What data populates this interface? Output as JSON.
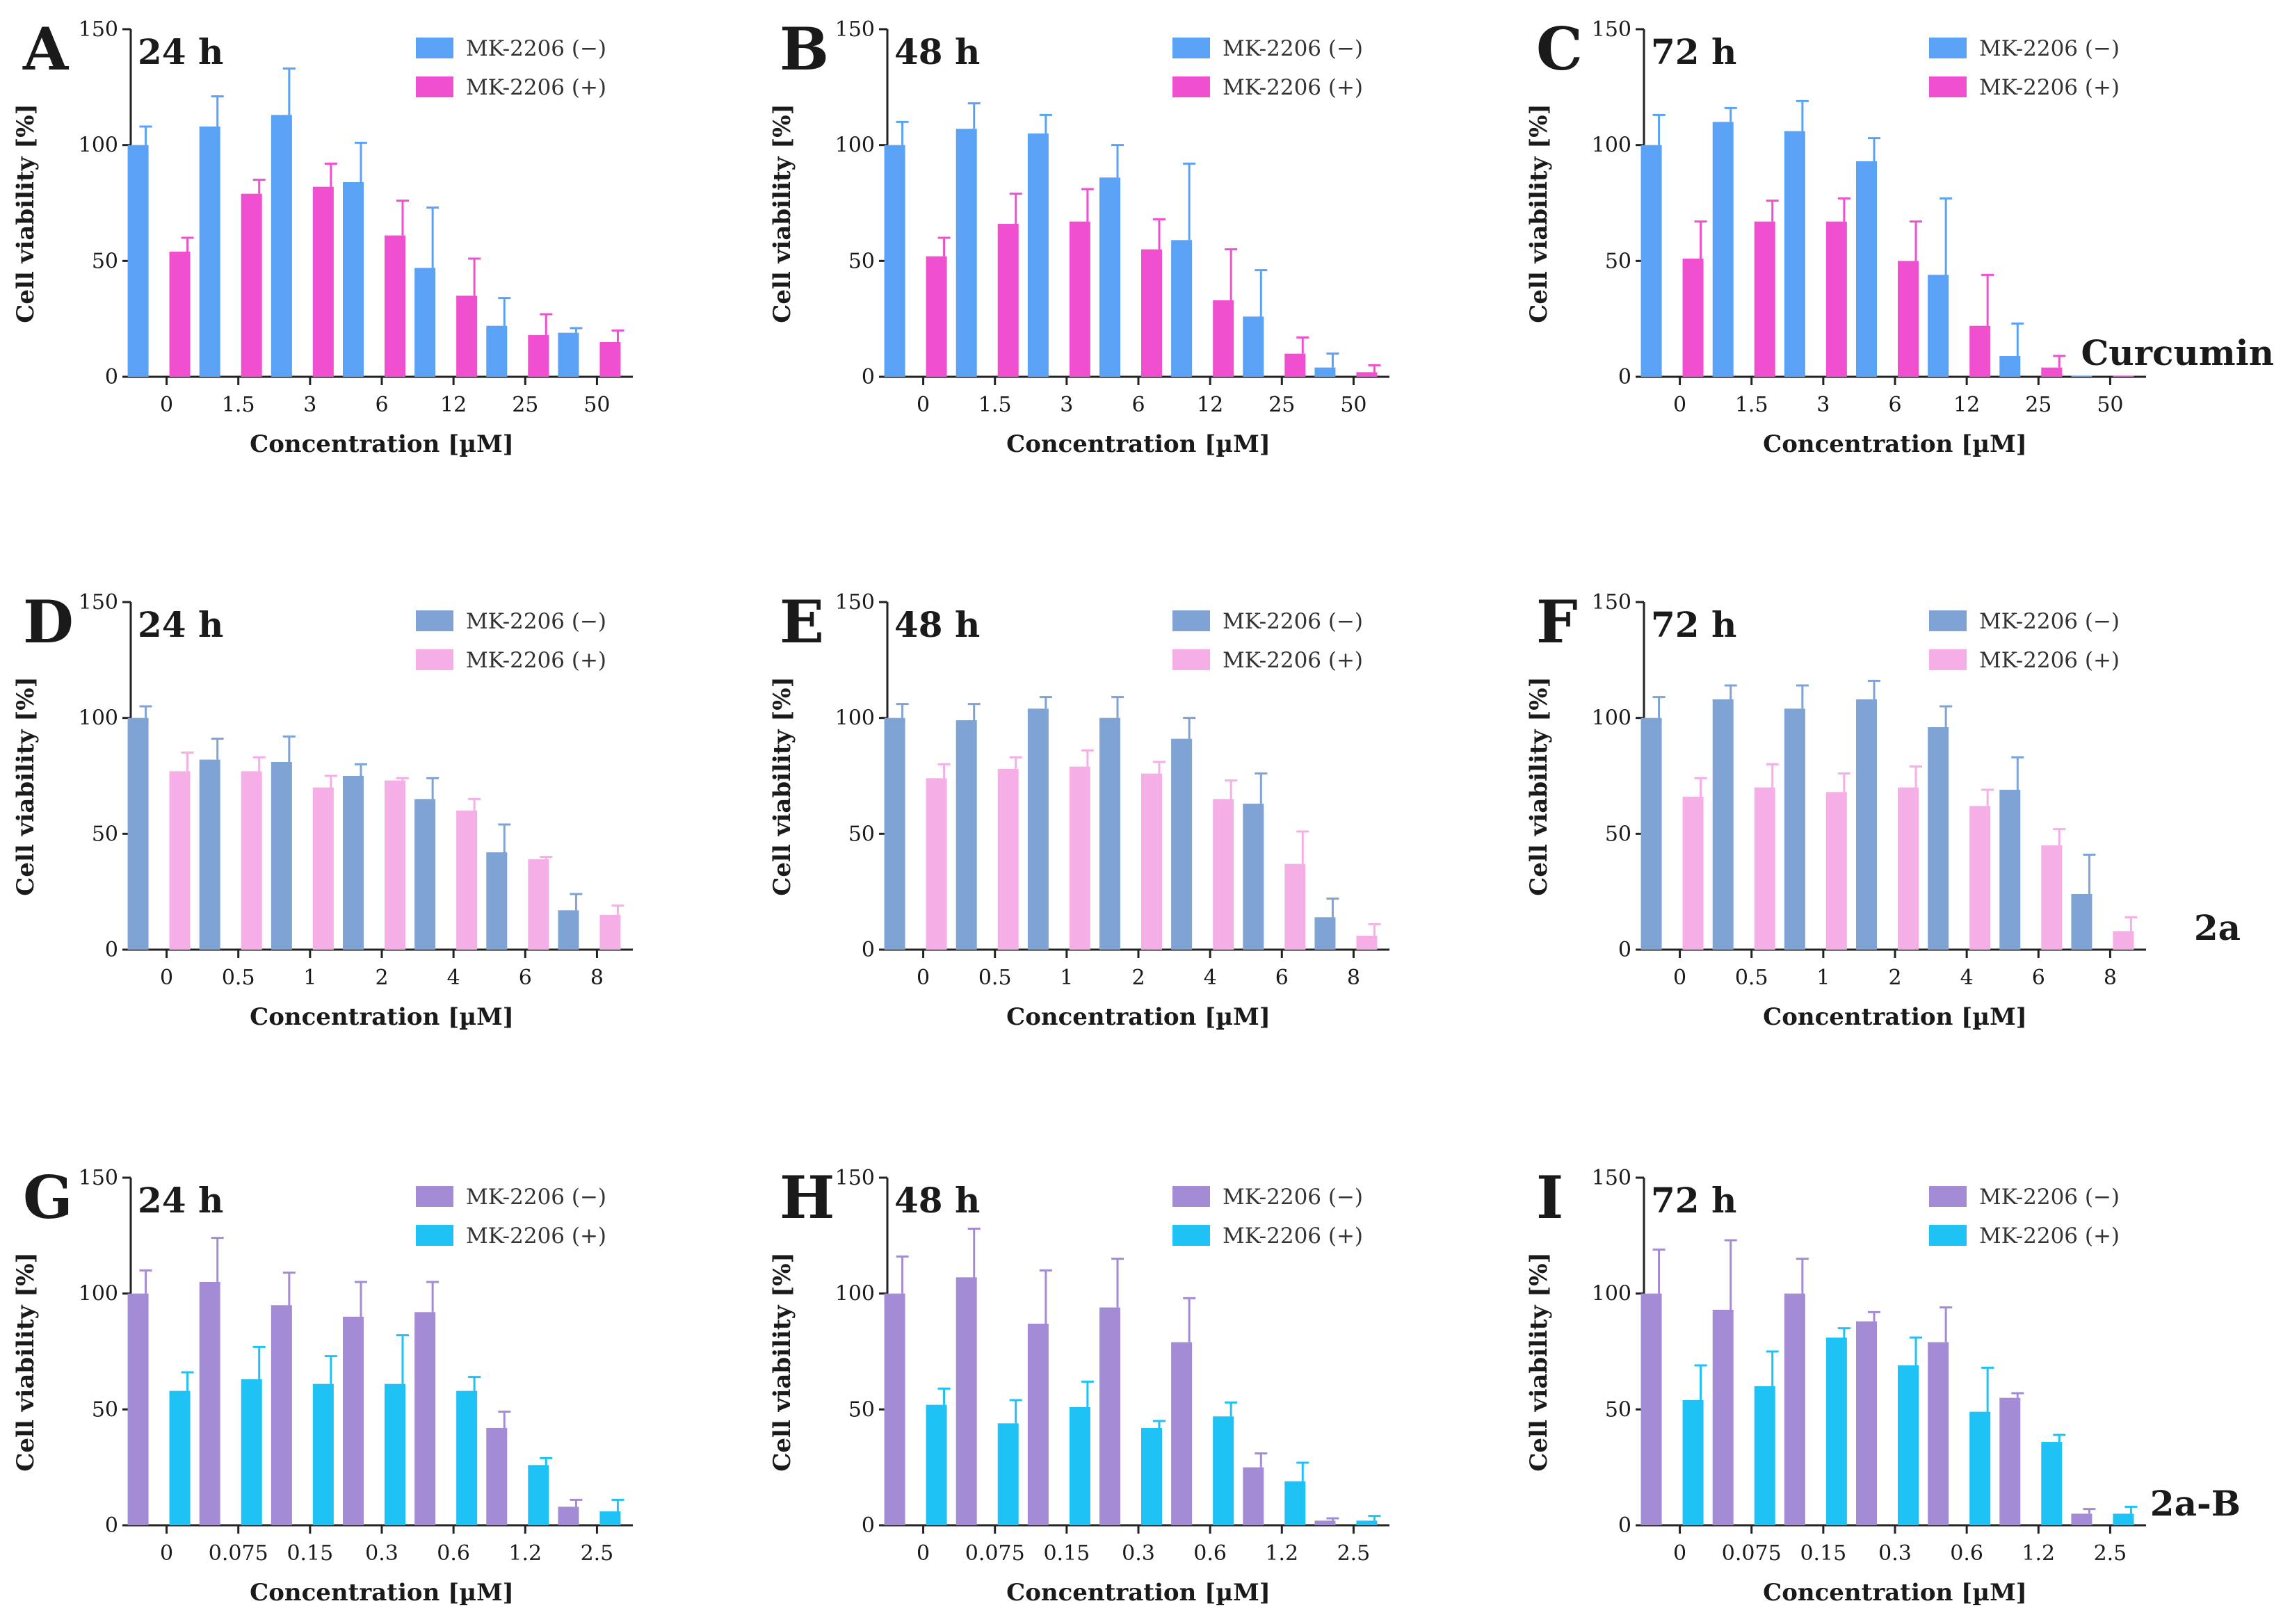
{
  "figure": {
    "row_labels": [
      "Curcumin",
      "2a",
      "2a-B"
    ]
  },
  "chart_data": [
    {
      "type": "bar",
      "panel": "A",
      "subtitle": "24 h",
      "compound": "Curcumin",
      "categories": [
        "0",
        "1.5",
        "3",
        "6",
        "12",
        "25",
        "50"
      ],
      "xlabel": "Concentration [µM]",
      "ylabel": "Cell viability [%]",
      "ylim": [
        0,
        150
      ],
      "yticks": [
        0,
        50,
        100,
        150
      ],
      "series": [
        {
          "name": "MK-2206 (−)",
          "color": "#5aa2f5",
          "values": [
            100,
            108,
            113,
            84,
            47,
            22,
            19
          ],
          "errors": [
            8,
            13,
            20,
            17,
            26,
            12,
            2
          ]
        },
        {
          "name": "MK-2206 (+)",
          "color": "#f04fd0",
          "values": [
            54,
            79,
            82,
            61,
            35,
            18,
            15
          ],
          "errors": [
            6,
            6,
            10,
            15,
            16,
            9,
            5
          ]
        }
      ]
    },
    {
      "type": "bar",
      "panel": "B",
      "subtitle": "48 h",
      "compound": "Curcumin",
      "categories": [
        "0",
        "1.5",
        "3",
        "6",
        "12",
        "25",
        "50"
      ],
      "xlabel": "Concentration [µM]",
      "ylabel": "Cell viability [%]",
      "ylim": [
        0,
        150
      ],
      "yticks": [
        0,
        50,
        100,
        150
      ],
      "series": [
        {
          "name": "MK-2206 (−)",
          "color": "#5aa2f5",
          "values": [
            100,
            107,
            105,
            86,
            59,
            26,
            4
          ],
          "errors": [
            10,
            11,
            8,
            14,
            33,
            20,
            6
          ]
        },
        {
          "name": "MK-2206 (+)",
          "color": "#f04fd0",
          "values": [
            52,
            66,
            67,
            55,
            33,
            10,
            2
          ],
          "errors": [
            8,
            13,
            14,
            13,
            22,
            7,
            3
          ]
        }
      ]
    },
    {
      "type": "bar",
      "panel": "C",
      "subtitle": "72 h",
      "compound": "Curcumin",
      "categories": [
        "0",
        "1.5",
        "3",
        "6",
        "12",
        "25",
        "50"
      ],
      "xlabel": "Concentration [µM]",
      "ylabel": "Cell viability [%]",
      "ylim": [
        0,
        150
      ],
      "yticks": [
        0,
        50,
        100,
        150
      ],
      "series": [
        {
          "name": "MK-2206 (−)",
          "color": "#5aa2f5",
          "values": [
            100,
            110,
            106,
            93,
            44,
            9,
            0.5
          ],
          "errors": [
            13,
            6,
            13,
            10,
            33,
            14,
            0
          ]
        },
        {
          "name": "MK-2206 (+)",
          "color": "#f04fd0",
          "values": [
            51,
            67,
            67,
            50,
            22,
            4,
            0.5
          ],
          "errors": [
            16,
            9,
            10,
            17,
            22,
            5,
            0
          ]
        }
      ]
    },
    {
      "type": "bar",
      "panel": "D",
      "subtitle": "24 h",
      "compound": "2a",
      "categories": [
        "0",
        "0.5",
        "1",
        "2",
        "4",
        "6",
        "8"
      ],
      "xlabel": "Concentration [µM]",
      "ylabel": "Cell viability [%]",
      "ylim": [
        0,
        150
      ],
      "yticks": [
        0,
        50,
        100,
        150
      ],
      "series": [
        {
          "name": "MK-2206 (−)",
          "color": "#7ea3d4",
          "values": [
            100,
            82,
            81,
            75,
            65,
            42,
            17
          ],
          "errors": [
            5,
            9,
            11,
            5,
            9,
            12,
            7
          ]
        },
        {
          "name": "MK-2206 (+)",
          "color": "#f5aee6",
          "values": [
            77,
            77,
            70,
            73,
            60,
            39,
            15
          ],
          "errors": [
            8,
            6,
            5,
            1,
            5,
            1,
            4
          ]
        }
      ]
    },
    {
      "type": "bar",
      "panel": "E",
      "subtitle": "48 h",
      "compound": "2a",
      "categories": [
        "0",
        "0.5",
        "1",
        "2",
        "4",
        "6",
        "8"
      ],
      "xlabel": "Concentration [µM]",
      "ylabel": "Cell viability [%]",
      "ylim": [
        0,
        150
      ],
      "yticks": [
        0,
        50,
        100,
        150
      ],
      "series": [
        {
          "name": "MK-2206 (−)",
          "color": "#7ea3d4",
          "values": [
            100,
            99,
            104,
            100,
            91,
            63,
            14
          ],
          "errors": [
            6,
            7,
            5,
            9,
            9,
            13,
            8
          ]
        },
        {
          "name": "MK-2206 (+)",
          "color": "#f5aee6",
          "values": [
            74,
            78,
            79,
            76,
            65,
            37,
            6
          ],
          "errors": [
            6,
            5,
            7,
            5,
            8,
            14,
            5
          ]
        }
      ]
    },
    {
      "type": "bar",
      "panel": "F",
      "subtitle": "72 h",
      "compound": "2a",
      "categories": [
        "0",
        "0.5",
        "1",
        "2",
        "4",
        "6",
        "8"
      ],
      "xlabel": "Concentration [µM]",
      "ylabel": "Cell viability [%]",
      "ylim": [
        0,
        150
      ],
      "yticks": [
        0,
        50,
        100,
        150
      ],
      "series": [
        {
          "name": "MK-2206 (−)",
          "color": "#7ea3d4",
          "values": [
            100,
            108,
            104,
            108,
            96,
            69,
            24
          ],
          "errors": [
            9,
            6,
            10,
            8,
            9,
            14,
            17
          ]
        },
        {
          "name": "MK-2206 (+)",
          "color": "#f5aee6",
          "values": [
            66,
            70,
            68,
            70,
            62,
            45,
            8
          ],
          "errors": [
            8,
            10,
            8,
            9,
            7,
            7,
            6
          ]
        }
      ]
    },
    {
      "type": "bar",
      "panel": "G",
      "subtitle": "24 h",
      "compound": "2a-B",
      "categories": [
        "0",
        "0.075",
        "0.15",
        "0.3",
        "0.6",
        "1.2",
        "2.5"
      ],
      "xlabel": "Concentration [µM]",
      "ylabel": "Cell viability [%]",
      "ylim": [
        0,
        150
      ],
      "yticks": [
        0,
        50,
        100,
        150
      ],
      "series": [
        {
          "name": "MK-2206 (−)",
          "color": "#a48bd6",
          "values": [
            100,
            105,
            95,
            90,
            92,
            42,
            8
          ],
          "errors": [
            10,
            19,
            14,
            15,
            13,
            7,
            3
          ]
        },
        {
          "name": "MK-2206 (+)",
          "color": "#1ec2f5",
          "values": [
            58,
            63,
            61,
            61,
            58,
            26,
            6
          ],
          "errors": [
            8,
            14,
            12,
            21,
            6,
            3,
            5
          ]
        }
      ]
    },
    {
      "type": "bar",
      "panel": "H",
      "subtitle": "48 h",
      "compound": "2a-B",
      "categories": [
        "0",
        "0.075",
        "0.15",
        "0.3",
        "0.6",
        "1.2",
        "2.5"
      ],
      "xlabel": "Concentration [µM]",
      "ylabel": "Cell viability [%]",
      "ylim": [
        0,
        150
      ],
      "yticks": [
        0,
        50,
        100,
        150
      ],
      "series": [
        {
          "name": "MK-2206 (−)",
          "color": "#a48bd6",
          "values": [
            100,
            107,
            87,
            94,
            79,
            25,
            2
          ],
          "errors": [
            16,
            21,
            23,
            21,
            19,
            6,
            1
          ]
        },
        {
          "name": "MK-2206 (+)",
          "color": "#1ec2f5",
          "values": [
            52,
            44,
            51,
            42,
            47,
            19,
            2
          ],
          "errors": [
            7,
            10,
            11,
            3,
            6,
            8,
            2
          ]
        }
      ]
    },
    {
      "type": "bar",
      "panel": "I",
      "subtitle": "72 h",
      "compound": "2a-B",
      "categories": [
        "0",
        "0.075",
        "0.15",
        "0.3",
        "0.6",
        "1.2",
        "2.5"
      ],
      "xlabel": "Concentration [µM]",
      "ylabel": "Cell viability [%]",
      "ylim": [
        0,
        150
      ],
      "yticks": [
        0,
        50,
        100,
        150
      ],
      "series": [
        {
          "name": "MK-2206 (−)",
          "color": "#a48bd6",
          "values": [
            100,
            93,
            100,
            88,
            79,
            55,
            5
          ],
          "errors": [
            19,
            30,
            15,
            4,
            15,
            2,
            2
          ]
        },
        {
          "name": "MK-2206 (+)",
          "color": "#1ec2f5",
          "values": [
            54,
            60,
            81,
            69,
            49,
            36,
            5
          ],
          "errors": [
            15,
            15,
            4,
            12,
            19,
            3,
            3
          ]
        }
      ]
    }
  ]
}
